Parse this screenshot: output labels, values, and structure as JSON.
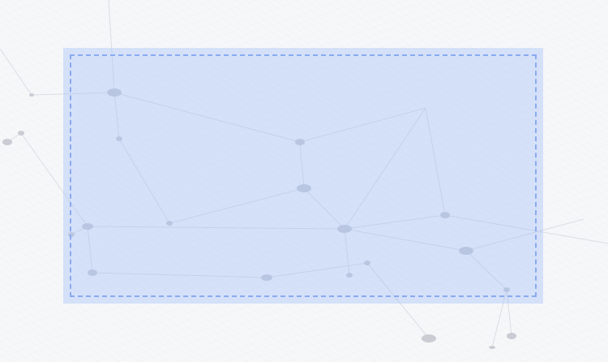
{
  "canvas": {
    "background_color": "#f6f7f9",
    "node_color": "#c9ccd3",
    "edge_color": "#d9dbe0"
  },
  "selection": {
    "fill_color": "#a0befa",
    "border_color": "#8aaaf0",
    "border_style": "dashed"
  }
}
